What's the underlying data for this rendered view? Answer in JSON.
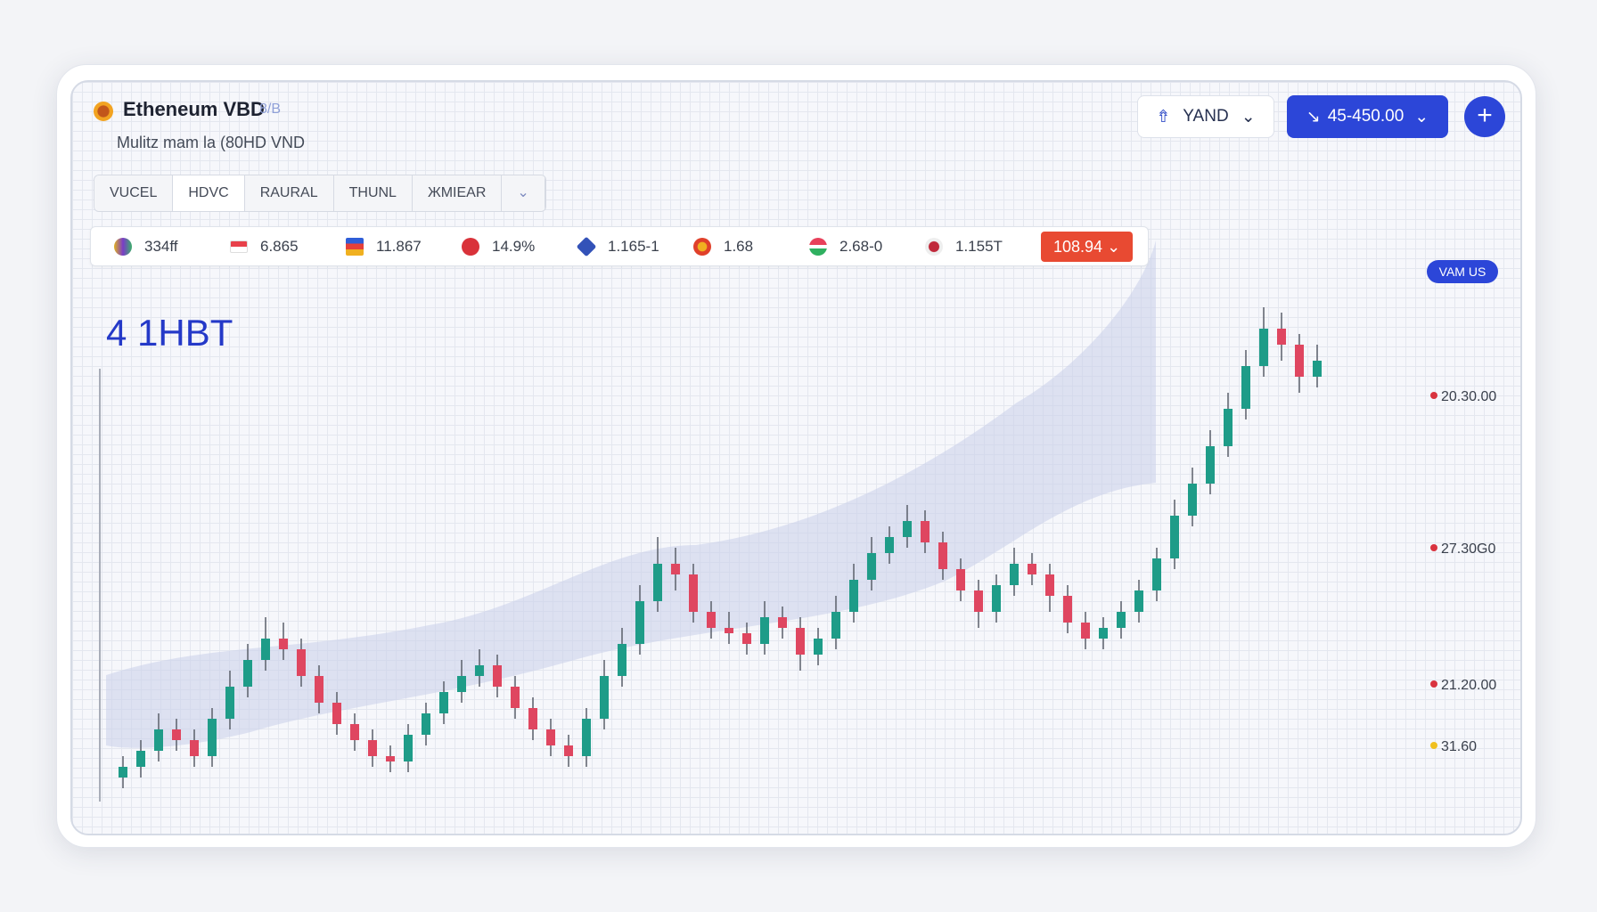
{
  "header": {
    "title": "Etheneum VBD",
    "tag": "8/B",
    "subtitle": "Mulitz mam la (80HD VND"
  },
  "controls": {
    "currency": "YAND",
    "amount": "45-450.00"
  },
  "tabs": [
    "VUCEL",
    "HDVC",
    "RAURAL",
    "THUNL",
    "ЖMIEAR"
  ],
  "tickers": [
    "334ff",
    "6.865",
    "11.867",
    "14.9%",
    "1.165-1",
    "1.68",
    "2.68-0",
    "1.155T"
  ],
  "ticker_action": "108.94",
  "chart": {
    "type": "candlestick",
    "label": "4 1HBT",
    "badge": "VAM US",
    "price_labels": [
      "20.30.00",
      "27.30G0",
      "21.20.00",
      "31.60"
    ],
    "candles": [
      [
        5,
        9,
        3,
        7
      ],
      [
        7,
        12,
        5,
        10
      ],
      [
        10,
        17,
        8,
        14
      ],
      [
        14,
        16,
        10,
        12
      ],
      [
        12,
        14,
        7,
        9
      ],
      [
        9,
        18,
        7,
        16
      ],
      [
        16,
        25,
        14,
        22
      ],
      [
        22,
        30,
        20,
        27
      ],
      [
        27,
        35,
        25,
        31
      ],
      [
        31,
        34,
        27,
        29
      ],
      [
        29,
        31,
        22,
        24
      ],
      [
        24,
        26,
        17,
        19
      ],
      [
        19,
        21,
        13,
        15
      ],
      [
        15,
        17,
        10,
        12
      ],
      [
        12,
        14,
        7,
        9
      ],
      [
        9,
        11,
        6,
        8
      ],
      [
        8,
        15,
        6,
        13
      ],
      [
        13,
        19,
        11,
        17
      ],
      [
        17,
        23,
        15,
        21
      ],
      [
        21,
        27,
        19,
        24
      ],
      [
        24,
        29,
        22,
        26
      ],
      [
        26,
        28,
        20,
        22
      ],
      [
        22,
        24,
        16,
        18
      ],
      [
        18,
        20,
        12,
        14
      ],
      [
        14,
        16,
        9,
        11
      ],
      [
        11,
        13,
        7,
        9
      ],
      [
        9,
        18,
        7,
        16
      ],
      [
        16,
        27,
        14,
        24
      ],
      [
        24,
        33,
        22,
        30
      ],
      [
        30,
        41,
        28,
        38
      ],
      [
        38,
        50,
        36,
        45
      ],
      [
        45,
        48,
        40,
        43
      ],
      [
        43,
        45,
        34,
        36
      ],
      [
        36,
        38,
        31,
        33
      ],
      [
        33,
        36,
        30,
        32
      ],
      [
        32,
        34,
        28,
        30
      ],
      [
        30,
        38,
        28,
        35
      ],
      [
        35,
        37,
        31,
        33
      ],
      [
        33,
        35,
        25,
        28
      ],
      [
        28,
        33,
        26,
        31
      ],
      [
        31,
        39,
        29,
        36
      ],
      [
        36,
        45,
        34,
        42
      ],
      [
        42,
        50,
        40,
        47
      ],
      [
        47,
        52,
        45,
        50
      ],
      [
        50,
        56,
        48,
        53
      ],
      [
        53,
        55,
        47,
        49
      ],
      [
        49,
        51,
        42,
        44
      ],
      [
        44,
        46,
        38,
        40
      ],
      [
        40,
        42,
        33,
        36
      ],
      [
        36,
        43,
        34,
        41
      ],
      [
        41,
        48,
        39,
        45
      ],
      [
        45,
        47,
        41,
        43
      ],
      [
        43,
        45,
        36,
        39
      ],
      [
        39,
        41,
        32,
        34
      ],
      [
        34,
        36,
        29,
        31
      ],
      [
        31,
        35,
        29,
        33
      ],
      [
        33,
        38,
        31,
        36
      ],
      [
        36,
        42,
        34,
        40
      ],
      [
        40,
        48,
        38,
        46
      ],
      [
        46,
        57,
        44,
        54
      ],
      [
        54,
        63,
        52,
        60
      ],
      [
        60,
        70,
        58,
        67
      ],
      [
        67,
        77,
        65,
        74
      ],
      [
        74,
        85,
        72,
        82
      ],
      [
        82,
        93,
        80,
        89
      ],
      [
        89,
        92,
        83,
        86
      ],
      [
        86,
        88,
        77,
        80
      ],
      [
        80,
        86,
        78,
        83
      ]
    ]
  }
}
